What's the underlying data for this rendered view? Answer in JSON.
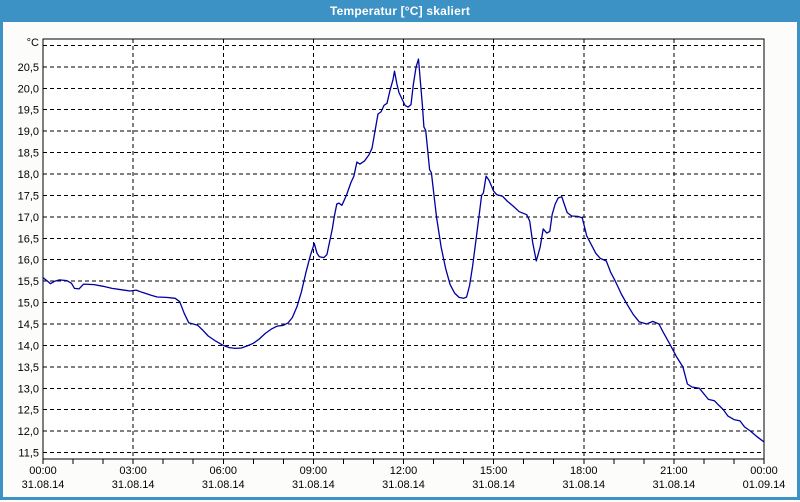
{
  "window": {
    "title": "Temperatur [°C] skaliert"
  },
  "colors": {
    "titlebar_bg": "#3c91c5",
    "titlebar_text": "#ffffff",
    "window_border": "#3c91c5",
    "page_bg": "#fcfdfb",
    "plot_bg": "#ffffff",
    "grid_line": "#000000",
    "axis_text": "#000000",
    "series_line": "#0000a0"
  },
  "chart_data": {
    "type": "line",
    "title": "Temperatur [°C] skaliert",
    "grid": "dashed",
    "ylim": [
      11.35,
      21.15
    ],
    "xlim_hours": [
      0,
      24
    ],
    "y_axis": {
      "unit_label": "°C",
      "ticks": [
        {
          "v": 21.0,
          "label": ""
        },
        {
          "v": 20.5,
          "label": "20,5"
        },
        {
          "v": 20.0,
          "label": "20,0"
        },
        {
          "v": 19.5,
          "label": "19,5"
        },
        {
          "v": 19.0,
          "label": "19,0"
        },
        {
          "v": 18.5,
          "label": "18,5"
        },
        {
          "v": 18.0,
          "label": "18,0"
        },
        {
          "v": 17.5,
          "label": "17,5"
        },
        {
          "v": 17.0,
          "label": "17,0"
        },
        {
          "v": 16.5,
          "label": "16,5"
        },
        {
          "v": 16.0,
          "label": "16,0"
        },
        {
          "v": 15.5,
          "label": "15,5"
        },
        {
          "v": 15.0,
          "label": "15,0"
        },
        {
          "v": 14.5,
          "label": "14,5"
        },
        {
          "v": 14.0,
          "label": "14,0"
        },
        {
          "v": 13.5,
          "label": "13,5"
        },
        {
          "v": 13.0,
          "label": "13,0"
        },
        {
          "v": 12.5,
          "label": "12,5"
        },
        {
          "v": 12.0,
          "label": "12,0"
        },
        {
          "v": 11.5,
          "label": "11,5"
        }
      ]
    },
    "x_axis": {
      "minor_tick_every_hours": 1,
      "major_ticks": [
        {
          "h": 0,
          "time": "00:00",
          "date": "31.08.14"
        },
        {
          "h": 3,
          "time": "03:00",
          "date": "31.08.14"
        },
        {
          "h": 6,
          "time": "06:00",
          "date": "31.08.14"
        },
        {
          "h": 9,
          "time": "09:00",
          "date": "31.08.14"
        },
        {
          "h": 12,
          "time": "12:00",
          "date": "31.08.14"
        },
        {
          "h": 15,
          "time": "15:00",
          "date": "31.08.14"
        },
        {
          "h": 18,
          "time": "18:00",
          "date": "31.08.14"
        },
        {
          "h": 21,
          "time": "21:00",
          "date": "31.08.14"
        },
        {
          "h": 24,
          "time": "00:00",
          "date": "01.09.14"
        }
      ]
    },
    "series": [
      {
        "color": "#0000a0",
        "points": [
          [
            0,
            15.58
          ],
          [
            0.15,
            15.5
          ],
          [
            0.25,
            15.44
          ],
          [
            0.4,
            15.5
          ],
          [
            0.55,
            15.53
          ],
          [
            0.8,
            15.51
          ],
          [
            0.95,
            15.45
          ],
          [
            1.05,
            15.33
          ],
          [
            1.2,
            15.32
          ],
          [
            1.35,
            15.43
          ],
          [
            1.7,
            15.42
          ],
          [
            2,
            15.38
          ],
          [
            2.3,
            15.33
          ],
          [
            2.6,
            15.3
          ],
          [
            2.9,
            15.27
          ],
          [
            3.1,
            15.29
          ],
          [
            3.3,
            15.24
          ],
          [
            3.6,
            15.17
          ],
          [
            3.8,
            15.13
          ],
          [
            4.1,
            15.12
          ],
          [
            4.4,
            15.1
          ],
          [
            4.55,
            15.02
          ],
          [
            4.7,
            14.75
          ],
          [
            4.85,
            14.53
          ],
          [
            5,
            14.5
          ],
          [
            5.15,
            14.47
          ],
          [
            5.3,
            14.37
          ],
          [
            5.5,
            14.22
          ],
          [
            5.75,
            14.1
          ],
          [
            6,
            14.0
          ],
          [
            6.2,
            13.95
          ],
          [
            6.4,
            13.93
          ],
          [
            6.6,
            13.94
          ],
          [
            6.8,
            13.99
          ],
          [
            7,
            14.05
          ],
          [
            7.2,
            14.15
          ],
          [
            7.4,
            14.28
          ],
          [
            7.6,
            14.38
          ],
          [
            7.8,
            14.45
          ],
          [
            8,
            14.47
          ],
          [
            8.15,
            14.52
          ],
          [
            8.3,
            14.65
          ],
          [
            8.45,
            14.9
          ],
          [
            8.6,
            15.25
          ],
          [
            8.75,
            15.7
          ],
          [
            8.9,
            16.1
          ],
          [
            9.03,
            16.38
          ],
          [
            9.12,
            16.15
          ],
          [
            9.2,
            16.07
          ],
          [
            9.35,
            16.05
          ],
          [
            9.45,
            16.12
          ],
          [
            9.55,
            16.45
          ],
          [
            9.63,
            16.72
          ],
          [
            9.7,
            17.02
          ],
          [
            9.78,
            17.3
          ],
          [
            9.85,
            17.32
          ],
          [
            9.95,
            17.27
          ],
          [
            10.1,
            17.5
          ],
          [
            10.25,
            17.8
          ],
          [
            10.35,
            17.95
          ],
          [
            10.45,
            18.28
          ],
          [
            10.55,
            18.23
          ],
          [
            10.7,
            18.3
          ],
          [
            10.85,
            18.45
          ],
          [
            10.95,
            18.6
          ],
          [
            11.05,
            19.0
          ],
          [
            11.15,
            19.4
          ],
          [
            11.25,
            19.45
          ],
          [
            11.35,
            19.6
          ],
          [
            11.45,
            19.65
          ],
          [
            11.55,
            19.95
          ],
          [
            11.65,
            20.2
          ],
          [
            11.7,
            20.4
          ],
          [
            11.78,
            20.1
          ],
          [
            11.85,
            19.9
          ],
          [
            11.95,
            19.75
          ],
          [
            12.05,
            19.6
          ],
          [
            12.15,
            19.56
          ],
          [
            12.25,
            19.62
          ],
          [
            12.33,
            20.1
          ],
          [
            12.42,
            20.5
          ],
          [
            12.5,
            20.68
          ],
          [
            12.57,
            20.1
          ],
          [
            12.63,
            19.6
          ],
          [
            12.68,
            19.1
          ],
          [
            12.74,
            19.02
          ],
          [
            12.8,
            18.6
          ],
          [
            12.87,
            18.1
          ],
          [
            12.93,
            18.03
          ],
          [
            13,
            17.6
          ],
          [
            13.1,
            17.0
          ],
          [
            13.25,
            16.3
          ],
          [
            13.4,
            15.8
          ],
          [
            13.55,
            15.42
          ],
          [
            13.7,
            15.22
          ],
          [
            13.85,
            15.12
          ],
          [
            14,
            15.1
          ],
          [
            14.1,
            15.13
          ],
          [
            14.2,
            15.4
          ],
          [
            14.3,
            15.85
          ],
          [
            14.42,
            16.5
          ],
          [
            14.52,
            17.05
          ],
          [
            14.6,
            17.5
          ],
          [
            14.66,
            17.56
          ],
          [
            14.75,
            17.95
          ],
          [
            14.85,
            17.85
          ],
          [
            15,
            17.6
          ],
          [
            15.1,
            17.52
          ],
          [
            15.3,
            17.48
          ],
          [
            15.45,
            17.37
          ],
          [
            15.65,
            17.25
          ],
          [
            15.85,
            17.12
          ],
          [
            16.1,
            17.05
          ],
          [
            16.2,
            16.9
          ],
          [
            16.3,
            16.4
          ],
          [
            16.42,
            15.97
          ],
          [
            16.55,
            16.3
          ],
          [
            16.65,
            16.72
          ],
          [
            16.77,
            16.62
          ],
          [
            16.87,
            16.66
          ],
          [
            16.95,
            17.06
          ],
          [
            17.05,
            17.3
          ],
          [
            17.15,
            17.44
          ],
          [
            17.27,
            17.47
          ],
          [
            17.35,
            17.3
          ],
          [
            17.45,
            17.1
          ],
          [
            17.6,
            17.02
          ],
          [
            17.8,
            17.01
          ],
          [
            17.95,
            16.98
          ],
          [
            18.1,
            16.55
          ],
          [
            18.25,
            16.35
          ],
          [
            18.4,
            16.15
          ],
          [
            18.55,
            16.03
          ],
          [
            18.75,
            15.97
          ],
          [
            18.9,
            15.7
          ],
          [
            19.05,
            15.5
          ],
          [
            19.25,
            15.2
          ],
          [
            19.45,
            14.95
          ],
          [
            19.65,
            14.72
          ],
          [
            19.85,
            14.55
          ],
          [
            20.1,
            14.5
          ],
          [
            20.3,
            14.56
          ],
          [
            20.5,
            14.5
          ],
          [
            20.65,
            14.3
          ],
          [
            20.85,
            14.05
          ],
          [
            21.1,
            13.72
          ],
          [
            21.3,
            13.5
          ],
          [
            21.45,
            13.1
          ],
          [
            21.6,
            13.03
          ],
          [
            21.85,
            13.0
          ],
          [
            22,
            12.87
          ],
          [
            22.15,
            12.74
          ],
          [
            22.35,
            12.71
          ],
          [
            22.5,
            12.6
          ],
          [
            22.65,
            12.5
          ],
          [
            22.8,
            12.35
          ],
          [
            23,
            12.27
          ],
          [
            23.2,
            12.24
          ],
          [
            23.35,
            12.1
          ],
          [
            23.55,
            12.0
          ],
          [
            23.75,
            11.88
          ],
          [
            23.9,
            11.8
          ],
          [
            24,
            11.75
          ]
        ]
      }
    ]
  }
}
